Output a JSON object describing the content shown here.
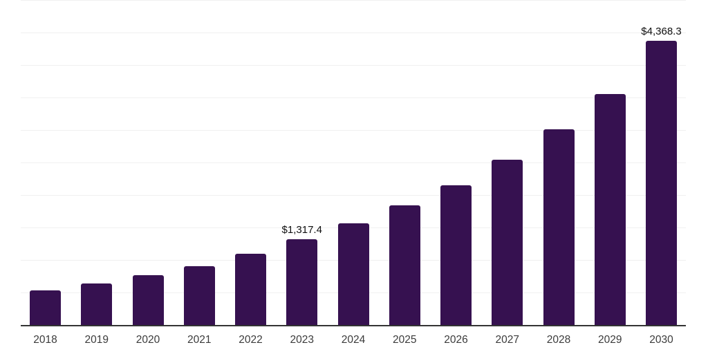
{
  "chart_data": {
    "type": "bar",
    "title": "",
    "xlabel": "",
    "ylabel": "",
    "categories": [
      "2018",
      "2019",
      "2020",
      "2021",
      "2022",
      "2023",
      "2024",
      "2025",
      "2026",
      "2027",
      "2028",
      "2029",
      "2030"
    ],
    "values": [
      530,
      635,
      765,
      910,
      1095,
      1317.4,
      1565,
      1845,
      2150,
      2540,
      3015,
      3555,
      4368.3
    ],
    "value_labels": [
      "",
      "",
      "",
      "",
      "",
      "$1,317.4",
      "",
      "",
      "",
      "",
      "",
      "",
      "$4,368.3"
    ],
    "ylim": [
      0,
      5000
    ],
    "gridline_interval": 500,
    "grid": "horizontal",
    "legend": "none",
    "bar_color": "#361150",
    "axis_color": "#333333",
    "gridline_color": "#f0f0f0",
    "value_label_color": "#0f0f0f",
    "tick_label_color": "#3b3b3b"
  }
}
